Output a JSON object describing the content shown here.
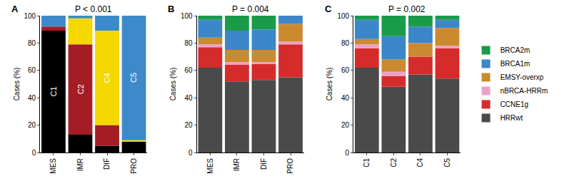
{
  "chart_data": [
    {
      "type": "bar",
      "panel": "A",
      "title": "P < 0.001",
      "y_label": "Cases (%)",
      "stacked": true,
      "categories": [
        "MES",
        "IMR",
        "DIF",
        "PRO"
      ],
      "series": [
        {
          "name": "C1",
          "color": "#000000",
          "values": [
            89,
            13,
            5,
            8
          ]
        },
        {
          "name": "C2",
          "color": "#a51d24",
          "values": [
            3,
            66,
            15,
            0
          ]
        },
        {
          "name": "C4",
          "color": "#f5d800",
          "values": [
            0,
            19,
            69,
            1
          ]
        },
        {
          "name": "C5",
          "color": "#3c8ac9",
          "values": [
            8,
            2,
            11,
            91
          ]
        }
      ],
      "annotations": [
        {
          "text": "C1",
          "category": "MES",
          "series": "C1"
        },
        {
          "text": "C2",
          "category": "IMR",
          "series": "C2"
        },
        {
          "text": "C4",
          "category": "DIF",
          "series": "C4"
        },
        {
          "text": "C5",
          "category": "PRO",
          "series": "C5"
        }
      ],
      "ylim": [
        0,
        100
      ],
      "yticks": [
        0,
        20,
        40,
        60,
        80,
        100
      ]
    },
    {
      "type": "bar",
      "panel": "B",
      "title": "P = 0.004",
      "y_label": "Cases (%)",
      "stacked": true,
      "legend": "right",
      "categories": [
        "MES",
        "IMR",
        "DIF",
        "PRO"
      ],
      "series": [
        {
          "name": "HRRwt",
          "color": "#4a4a4a",
          "values": [
            62,
            52,
            53,
            55
          ]
        },
        {
          "name": "CCNE1g",
          "color": "#d62b2b",
          "values": [
            15,
            12,
            12,
            24
          ]
        },
        {
          "name": "nBRCA-HRRm",
          "color": "#e9a3cb",
          "values": [
            2,
            2,
            1,
            2
          ]
        },
        {
          "name": "EMSY-overxp",
          "color": "#cc8a2f",
          "values": [
            5,
            9,
            9,
            13
          ]
        },
        {
          "name": "BRCA1m",
          "color": "#3b87c9",
          "values": [
            13,
            14,
            15,
            6
          ]
        },
        {
          "name": "BRCA2m",
          "color": "#1a9b4a",
          "values": [
            3,
            11,
            10,
            0
          ]
        }
      ],
      "ylim": [
        0,
        100
      ],
      "yticks": [
        0,
        20,
        40,
        60,
        80,
        100
      ]
    },
    {
      "type": "bar",
      "panel": "C",
      "title": "P = 0.002",
      "y_label": "Cases (%)",
      "stacked": true,
      "legend": "right",
      "categories": [
        "C1",
        "C2",
        "C4",
        "C5"
      ],
      "series": [
        {
          "name": "HRRwt",
          "color": "#4a4a4a",
          "values": [
            62,
            48,
            57,
            54
          ]
        },
        {
          "name": "CCNE1g",
          "color": "#d62b2b",
          "values": [
            14,
            8,
            13,
            22
          ]
        },
        {
          "name": "nBRCA-HRRm",
          "color": "#e9a3cb",
          "values": [
            3,
            3,
            0,
            2
          ]
        },
        {
          "name": "EMSY-overxp",
          "color": "#cc8a2f",
          "values": [
            4,
            9,
            10,
            13
          ]
        },
        {
          "name": "BRCA1m",
          "color": "#3b87c9",
          "values": [
            14,
            17,
            12,
            6
          ]
        },
        {
          "name": "BRCA2m",
          "color": "#1a9b4a",
          "values": [
            3,
            15,
            8,
            3
          ]
        }
      ],
      "ylim": [
        0,
        100
      ],
      "yticks": [
        0,
        20,
        40,
        60,
        80,
        100
      ]
    }
  ]
}
